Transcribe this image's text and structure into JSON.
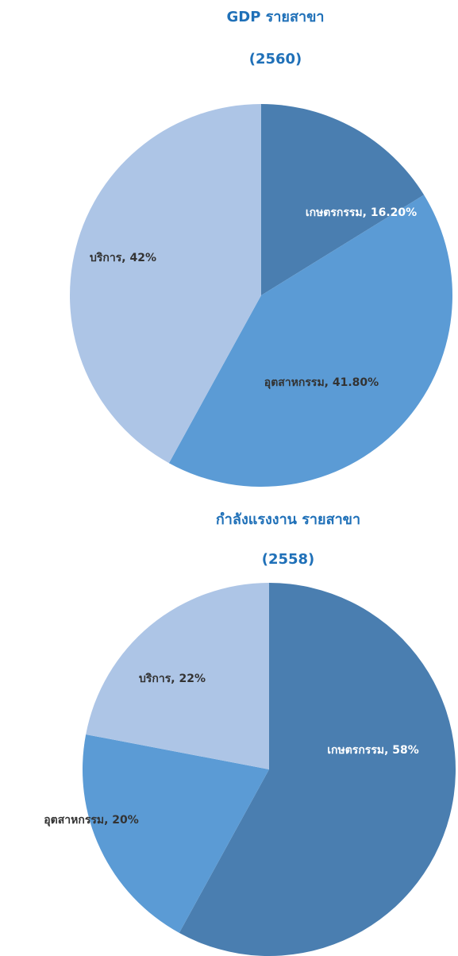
{
  "chart_data": [
    {
      "type": "pie",
      "title": "GDP รายสาขา",
      "subtitle": "(2560)",
      "values": [
        16.2,
        41.8,
        42
      ],
      "value_labels": [
        "เกษตรกรรม, 16.20%",
        "อุตสาหกรรม, 41.80%",
        "บริการ, 42%"
      ],
      "colors": [
        "#4a7eb0",
        "#5b9bd5",
        "#adc5e6"
      ]
    },
    {
      "type": "pie",
      "title": "กำลังแรงงาน รายสาขา",
      "subtitle": "(2558)",
      "values": [
        58,
        20,
        22
      ],
      "value_labels": [
        "เกษตรกรรม, 58%",
        "อุตสาหกรรม, 20%",
        "บริการ, 22%"
      ],
      "colors": [
        "#4a7eb0",
        "#5b9bd5",
        "#adc5e6"
      ]
    }
  ]
}
